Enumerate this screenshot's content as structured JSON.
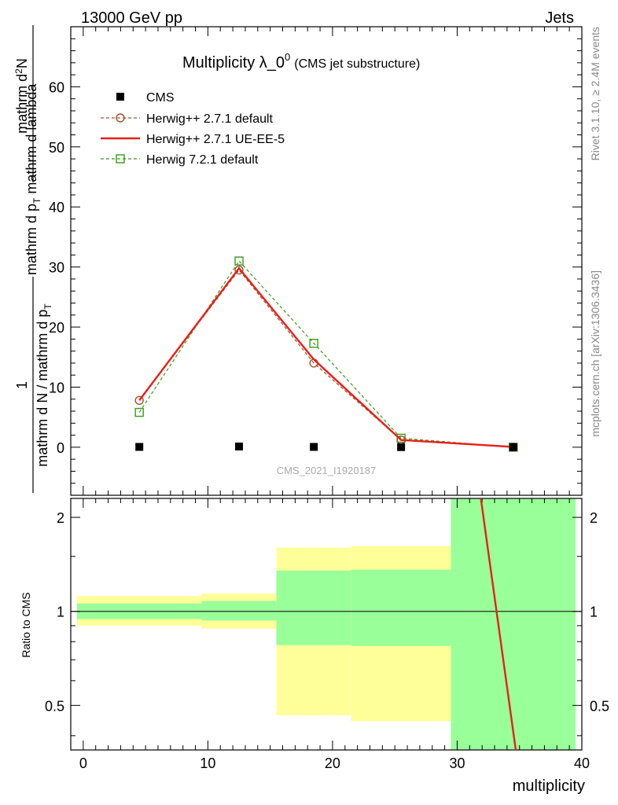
{
  "header": {
    "left": "13000 GeV pp",
    "right": "Jets"
  },
  "side_labels": {
    "rivet": "Rivet 3.1.10, ≥ 2.4M events",
    "mcplots": "mcplots.cern.ch [arXiv:1306.3436]"
  },
  "chart_data": {
    "type": "line",
    "title_main": "Multiplicity λ_0",
    "title_sup": "0",
    "title_sub": "(CMS jet substructure)",
    "watermark": "CMS_2021_I1920187",
    "ylabel_parts": {
      "frac_num": "1",
      "frac_den": "mathrm d N / mathrm d p",
      "frac_den_sub": "T",
      "mid": "mathrm d p",
      "mid_sub": "T",
      "mid_after": " mathrm d lambda",
      "right_num": "mathrm d",
      "right_sup": "2",
      "right_after": "N"
    },
    "xlabel": "multiplicity",
    "ratio_ylabel": "Ratio to CMS",
    "xlim": [
      -1,
      40
    ],
    "ylim": [
      -8,
      70
    ],
    "x_ticks": [
      0,
      10,
      20,
      30,
      40
    ],
    "y_ticks": [
      0,
      10,
      20,
      30,
      40,
      50,
      60
    ],
    "ratio_ylim": [
      0.36,
      2.3
    ],
    "ratio_ticks": [
      0.5,
      1,
      2
    ],
    "series": [
      {
        "name": "CMS",
        "style": "data",
        "color": "#000000",
        "x": [
          4.5,
          12.5,
          18.5,
          25.5,
          34.5
        ],
        "y": [
          0.05,
          0.12,
          0.05,
          0.02,
          0.01
        ]
      },
      {
        "name": "Herwig++ 2.7.1 default",
        "style": "dashed-circle",
        "color": "#a0522d",
        "x": [
          4.5,
          12.5,
          18.5,
          25.5,
          34.5
        ],
        "y": [
          7.8,
          29.5,
          14.0,
          1.2,
          0.0
        ]
      },
      {
        "name": "Herwig++ 2.7.1 UE-EE-5",
        "style": "solid",
        "color": "#e8201a",
        "x": [
          4.5,
          12.5,
          18.5,
          25.5,
          34.5
        ],
        "y": [
          7.8,
          29.8,
          14.6,
          1.2,
          0.05
        ]
      },
      {
        "name": "Herwig 7.2.1 default",
        "style": "dashed-square",
        "color": "#3a9a1a",
        "x": [
          4.5,
          12.5,
          18.5,
          25.5,
          34.5
        ],
        "y": [
          5.8,
          31.0,
          17.3,
          1.5,
          0.0
        ]
      }
    ],
    "ratio_bands": [
      {
        "x0": -0.5,
        "x1": 9.5,
        "stat": [
          0.945,
          1.06
        ],
        "total": [
          0.9,
          1.12
        ]
      },
      {
        "x0": 9.5,
        "x1": 15.5,
        "stat": [
          0.935,
          1.08
        ],
        "total": [
          0.88,
          1.14
        ]
      },
      {
        "x0": 15.5,
        "x1": 21.5,
        "stat": [
          0.78,
          1.35
        ],
        "total": [
          0.465,
          1.6
        ]
      },
      {
        "x0": 21.5,
        "x1": 29.5,
        "stat": [
          0.775,
          1.36
        ],
        "total": [
          0.445,
          1.62
        ]
      },
      {
        "x0": 29.5,
        "x1": 39.5,
        "stat": [
          0.36,
          2.3
        ],
        "total": [
          0.36,
          2.3
        ]
      }
    ],
    "ratio_line": {
      "series": "Herwig++ 2.7.1 UE-EE-5",
      "x": [
        31.9,
        34.7
      ],
      "y": [
        2.3,
        0.36
      ]
    },
    "colors": {
      "stat_band": "#99ff99",
      "total_band": "#ffff99"
    }
  }
}
